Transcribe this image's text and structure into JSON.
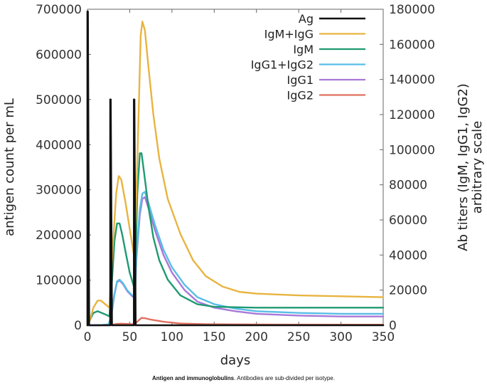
{
  "caption": {
    "bold": "Antigen and immunoglobulins",
    "rest": ". Antibodies are sub-divided per isotype."
  },
  "chart_data": {
    "type": "line",
    "xlabel": "days",
    "ylabel_left": "antigen count per mL",
    "ylabel_right": [
      "Ab titers (IgM, IgG1, IgG2)",
      "arbitrary scale"
    ],
    "xlim": [
      0,
      350
    ],
    "ylim_left": [
      0,
      700000
    ],
    "ylim_right": [
      0,
      180000
    ],
    "x_ticks": [
      0,
      50,
      100,
      150,
      200,
      250,
      300,
      350
    ],
    "y_left_ticks": [
      0,
      100000,
      200000,
      300000,
      400000,
      500000,
      600000,
      700000
    ],
    "y_right_ticks": [
      0,
      20000,
      40000,
      60000,
      80000,
      100000,
      120000,
      140000,
      160000,
      180000
    ],
    "grid": false,
    "legend": "top-right",
    "series": [
      {
        "name": "Ag",
        "axis": "left",
        "color": "#111111",
        "points": [
          [
            0,
            0
          ],
          [
            0,
            695000
          ],
          [
            0.5,
            695000
          ],
          [
            2,
            0
          ],
          [
            27,
            0
          ],
          [
            27,
            500000
          ],
          [
            27.5,
            500000
          ],
          [
            29,
            0
          ],
          [
            55,
            0
          ],
          [
            55,
            500000
          ],
          [
            55.5,
            500000
          ],
          [
            57,
            0
          ],
          [
            350,
            0
          ]
        ]
      },
      {
        "name": "IgM+IgG",
        "axis": "right",
        "color": "#e8b440",
        "points": [
          [
            0,
            0
          ],
          [
            3,
            3000
          ],
          [
            7,
            10000
          ],
          [
            12,
            14000
          ],
          [
            16,
            14000
          ],
          [
            21,
            12000
          ],
          [
            26,
            10000
          ],
          [
            30,
            45000
          ],
          [
            34,
            75000
          ],
          [
            37,
            85000
          ],
          [
            40,
            83000
          ],
          [
            45,
            70000
          ],
          [
            50,
            55000
          ],
          [
            55,
            40000
          ],
          [
            57,
            60000
          ],
          [
            60,
            110000
          ],
          [
            63,
            165000
          ],
          [
            65,
            173000
          ],
          [
            68,
            168000
          ],
          [
            72,
            148000
          ],
          [
            78,
            120000
          ],
          [
            85,
            95000
          ],
          [
            95,
            72000
          ],
          [
            110,
            52000
          ],
          [
            125,
            37000
          ],
          [
            140,
            28000
          ],
          [
            160,
            22000
          ],
          [
            180,
            19000
          ],
          [
            200,
            18000
          ],
          [
            250,
            17000
          ],
          [
            300,
            16500
          ],
          [
            350,
            16000
          ]
        ]
      },
      {
        "name": "IgM",
        "axis": "right",
        "color": "#1f9a72",
        "points": [
          [
            0,
            0
          ],
          [
            3,
            3000
          ],
          [
            7,
            7000
          ],
          [
            12,
            8000
          ],
          [
            17,
            7000
          ],
          [
            22,
            6000
          ],
          [
            26,
            5000
          ],
          [
            29,
            25000
          ],
          [
            32,
            48000
          ],
          [
            35,
            58000
          ],
          [
            38,
            58000
          ],
          [
            41,
            52000
          ],
          [
            45,
            42000
          ],
          [
            50,
            30000
          ],
          [
            55,
            22000
          ],
          [
            57,
            40000
          ],
          [
            59,
            75000
          ],
          [
            62,
            98000
          ],
          [
            64,
            98000
          ],
          [
            67,
            87000
          ],
          [
            72,
            68000
          ],
          [
            78,
            50000
          ],
          [
            85,
            37000
          ],
          [
            95,
            26000
          ],
          [
            110,
            17000
          ],
          [
            130,
            12000
          ],
          [
            150,
            10500
          ],
          [
            200,
            10000
          ],
          [
            250,
            10000
          ],
          [
            300,
            10000
          ],
          [
            350,
            10000
          ]
        ]
      },
      {
        "name": "IgG1+IgG2",
        "axis": "right",
        "color": "#59bde6",
        "points": [
          [
            0,
            0
          ],
          [
            15,
            0
          ],
          [
            25,
            500
          ],
          [
            28,
            5000
          ],
          [
            32,
            18000
          ],
          [
            35,
            25000
          ],
          [
            38,
            26000
          ],
          [
            42,
            24000
          ],
          [
            47,
            20000
          ],
          [
            53,
            17000
          ],
          [
            56,
            16000
          ],
          [
            58,
            40000
          ],
          [
            62,
            66000
          ],
          [
            65,
            75000
          ],
          [
            68,
            76000
          ],
          [
            72,
            70000
          ],
          [
            80,
            57000
          ],
          [
            90,
            43000
          ],
          [
            100,
            33000
          ],
          [
            115,
            23000
          ],
          [
            130,
            16000
          ],
          [
            150,
            12000
          ],
          [
            175,
            9500
          ],
          [
            200,
            8000
          ],
          [
            250,
            7000
          ],
          [
            300,
            6500
          ],
          [
            350,
            6500
          ]
        ]
      },
      {
        "name": "IgG1",
        "axis": "right",
        "color": "#a878d8",
        "points": [
          [
            0,
            0
          ],
          [
            15,
            0
          ],
          [
            25,
            500
          ],
          [
            28,
            4800
          ],
          [
            32,
            17500
          ],
          [
            35,
            24500
          ],
          [
            38,
            25500
          ],
          [
            42,
            23500
          ],
          [
            47,
            19500
          ],
          [
            53,
            16500
          ],
          [
            56,
            15500
          ],
          [
            58,
            38000
          ],
          [
            62,
            63000
          ],
          [
            65,
            72000
          ],
          [
            68,
            73000
          ],
          [
            72,
            67000
          ],
          [
            80,
            54000
          ],
          [
            90,
            40000
          ],
          [
            100,
            30000
          ],
          [
            115,
            20000
          ],
          [
            130,
            13500
          ],
          [
            150,
            10000
          ],
          [
            175,
            8000
          ],
          [
            200,
            6500
          ],
          [
            250,
            5500
          ],
          [
            300,
            5000
          ],
          [
            350,
            5000
          ]
        ]
      },
      {
        "name": "IgG2",
        "axis": "right",
        "color": "#e07060",
        "points": [
          [
            0,
            0
          ],
          [
            25,
            0
          ],
          [
            30,
            300
          ],
          [
            35,
            800
          ],
          [
            40,
            900
          ],
          [
            50,
            700
          ],
          [
            56,
            600
          ],
          [
            60,
            2500
          ],
          [
            64,
            4200
          ],
          [
            68,
            4000
          ],
          [
            75,
            3200
          ],
          [
            90,
            2000
          ],
          [
            110,
            1000
          ],
          [
            140,
            600
          ],
          [
            200,
            400
          ],
          [
            350,
            300
          ]
        ]
      }
    ]
  }
}
